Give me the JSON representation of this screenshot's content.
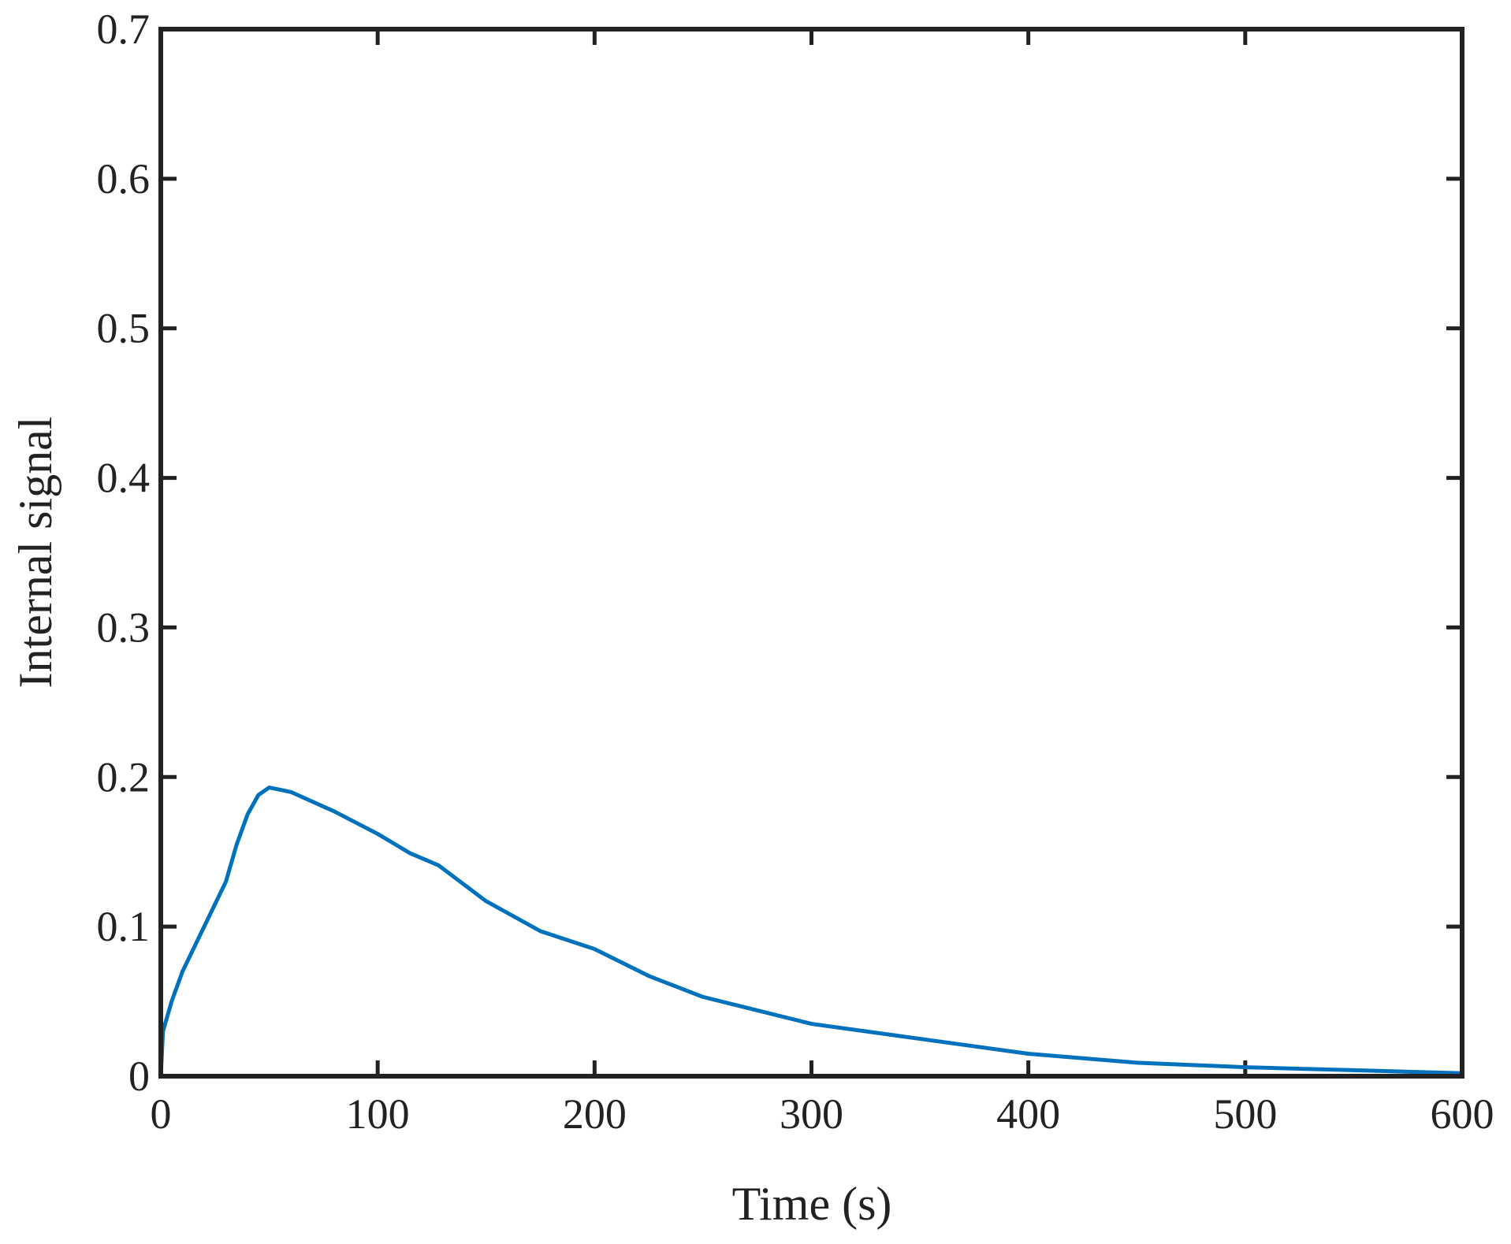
{
  "chart_data": {
    "type": "line",
    "xlabel": "Time (s)",
    "ylabel": "Internal signal",
    "x": [
      0,
      1,
      5,
      10,
      20,
      30,
      35,
      40,
      45,
      50,
      60,
      80,
      100,
      115,
      128,
      150,
      175,
      200,
      225,
      250,
      300,
      340,
      400,
      450,
      500,
      550,
      600
    ],
    "series": [
      {
        "name": "Internal signal",
        "color": "#0072bd",
        "values": [
          0,
          0.03,
          0.05,
          0.07,
          0.1,
          0.13,
          0.155,
          0.175,
          0.188,
          0.193,
          0.19,
          0.177,
          0.162,
          0.149,
          0.141,
          0.117,
          0.097,
          0.085,
          0.067,
          0.053,
          0.035,
          0.027,
          0.015,
          0.009,
          0.006,
          0.004,
          0.002
        ]
      }
    ],
    "xlim": [
      0,
      600
    ],
    "xticks": [
      0,
      100,
      200,
      300,
      400,
      500,
      600
    ],
    "ylim": [
      0,
      0.7
    ],
    "yticks": [
      0,
      0.1,
      0.2,
      0.3,
      0.4,
      0.5,
      0.6,
      0.7
    ],
    "grid": false
  }
}
